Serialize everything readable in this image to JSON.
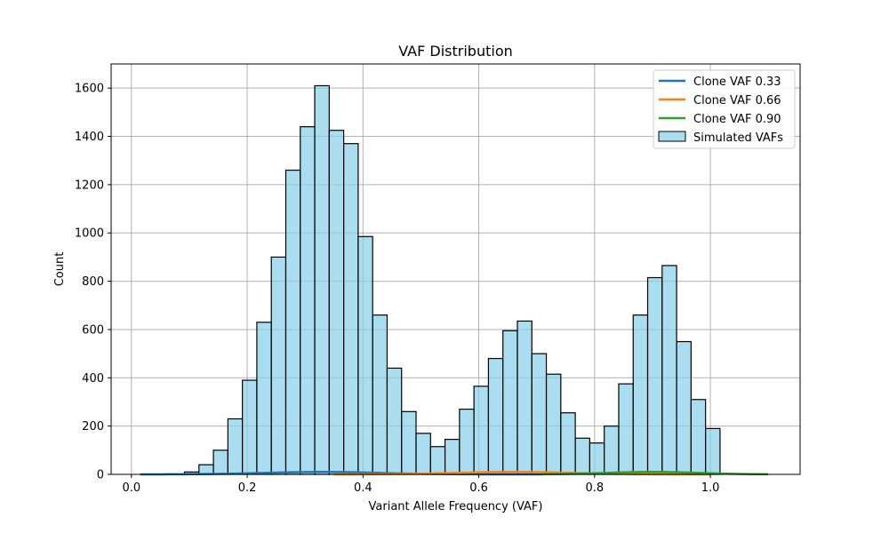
{
  "chart_data": {
    "type": "bar",
    "title": "VAF Distribution",
    "xlabel": "Variant Allele Frequency (VAF)",
    "ylabel": "Count",
    "xlim": [
      -0.035,
      1.155
    ],
    "ylim": [
      0,
      1700
    ],
    "xticks": [
      0.0,
      0.2,
      0.4,
      0.6,
      0.8,
      1.0
    ],
    "xtick_labels": [
      "0.0",
      "0.2",
      "0.4",
      "0.6",
      "0.8",
      "1.0"
    ],
    "yticks": [
      0,
      200,
      400,
      600,
      800,
      1000,
      1200,
      1400,
      1600
    ],
    "ytick_labels": [
      "0",
      "200",
      "400",
      "600",
      "800",
      "1000",
      "1200",
      "1400",
      "1600"
    ],
    "grid": true,
    "legend_position": "top-right",
    "histogram": {
      "name": "Simulated VAFs",
      "color": "#87ceeb",
      "edge_color": "#000000",
      "bin_edges": [
        0.0167,
        0.0417,
        0.0667,
        0.0917,
        0.1167,
        0.1417,
        0.1667,
        0.1917,
        0.2167,
        0.2417,
        0.2667,
        0.2917,
        0.3167,
        0.3417,
        0.3667,
        0.3917,
        0.4167,
        0.4417,
        0.4667,
        0.4917,
        0.5167,
        0.5417,
        0.5667,
        0.5917,
        0.6167,
        0.6417,
        0.6667,
        0.6917,
        0.7167,
        0.7417,
        0.7667,
        0.7917,
        0.8167,
        0.8417,
        0.8667,
        0.8917,
        0.9167,
        0.9417,
        0.9667,
        0.9917,
        1.0167
      ],
      "counts": [
        0,
        0,
        0,
        10,
        40,
        100,
        230,
        390,
        630,
        900,
        1260,
        1440,
        1610,
        1425,
        1370,
        985,
        660,
        440,
        260,
        170,
        115,
        145,
        270,
        365,
        480,
        595,
        635,
        500,
        415,
        255,
        150,
        130,
        200,
        375,
        660,
        815,
        865,
        550,
        310,
        190
      ]
    },
    "series": [
      {
        "name": "Clone VAF 0.33",
        "color": "#1f77b4",
        "x_range": [
          0.015,
          0.71
        ],
        "center": 0.33,
        "sigma": 0.1,
        "peak": 10
      },
      {
        "name": "Clone VAF 0.66",
        "color": "#ff7f0e",
        "x_range": [
          0.35,
          1.0
        ],
        "center": 0.66,
        "sigma": 0.1,
        "peak": 10
      },
      {
        "name": "Clone VAF 0.90",
        "color": "#2ca02c",
        "x_range": [
          0.71,
          1.1
        ],
        "center": 0.9,
        "sigma": 0.08,
        "peak": 10
      }
    ]
  }
}
